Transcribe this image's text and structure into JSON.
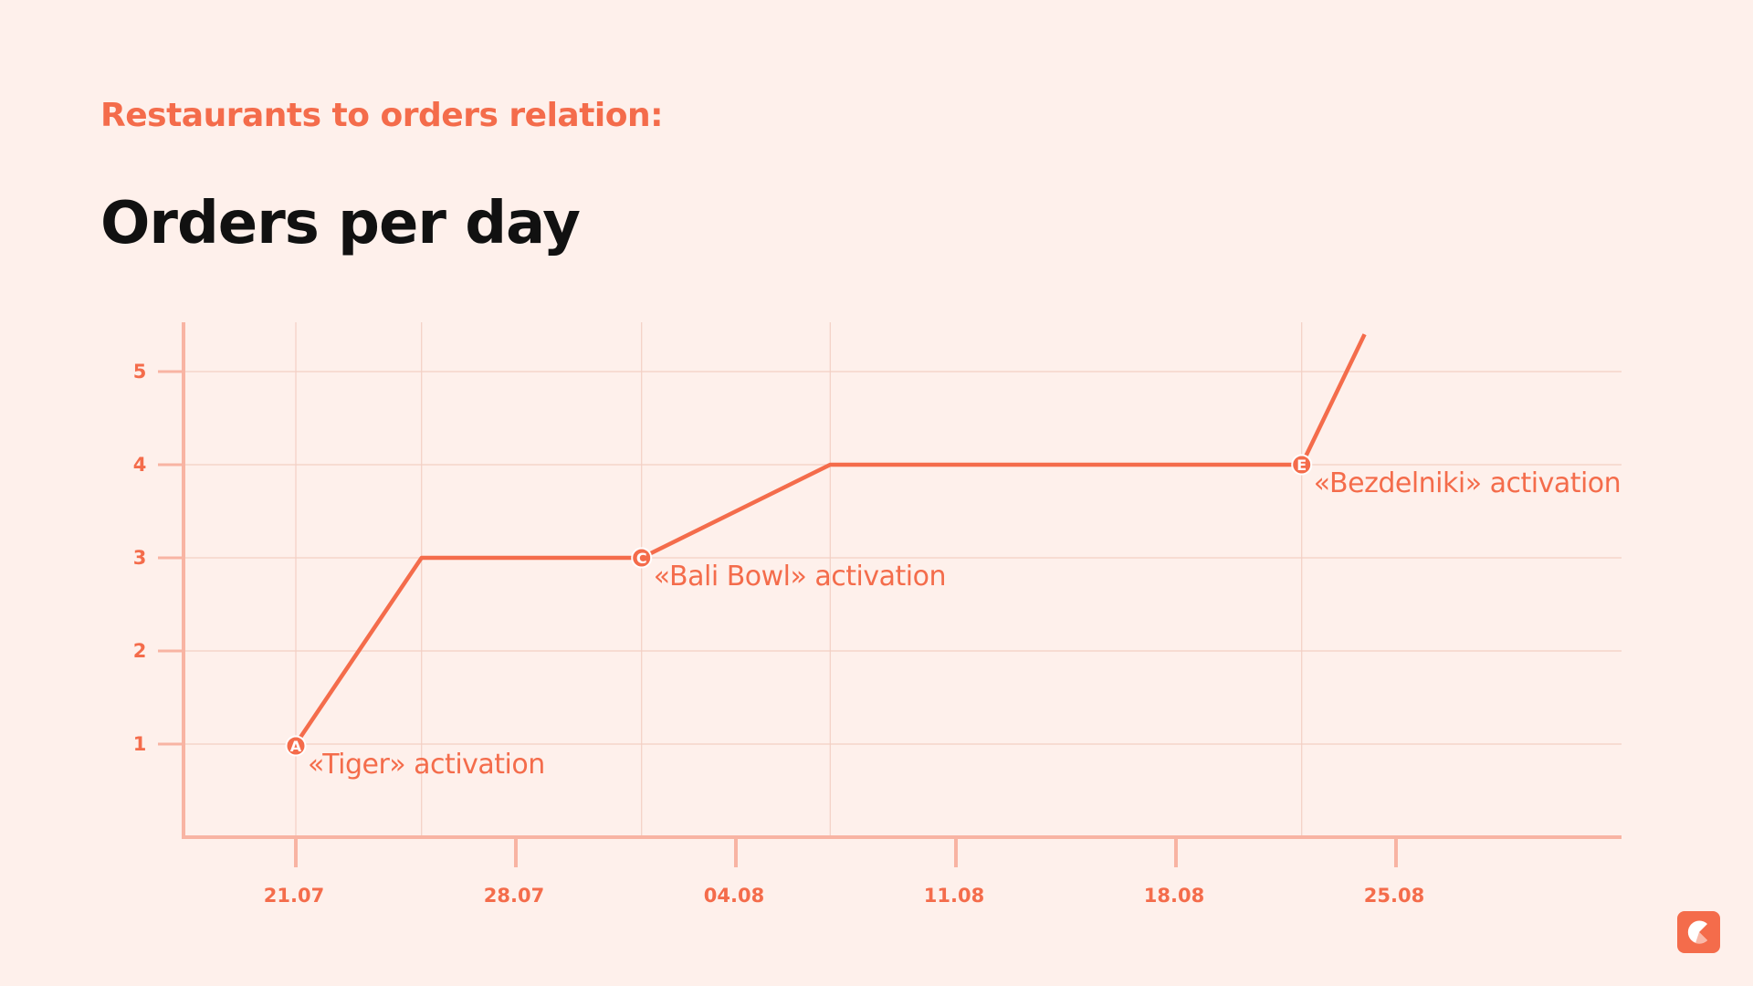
{
  "header": {
    "subtitle": "Restaurants to orders relation:",
    "title": "Orders per day"
  },
  "colors": {
    "accent": "#f46c4b",
    "background": "#fef0eb",
    "axis": "#f8b4a3",
    "grid": "#f3cfc4"
  },
  "chart_data": {
    "type": "line",
    "title": "Orders per day",
    "xlabel": "",
    "ylabel": "",
    "x_ticks": [
      "21.07",
      "28.07",
      "04.08",
      "11.08",
      "18.08",
      "25.08"
    ],
    "y_ticks": [
      1,
      2,
      3,
      4,
      5
    ],
    "ylim": [
      0,
      5.5
    ],
    "grid": true,
    "series": [
      {
        "points": [
          {
            "x": "21.07",
            "y": 1
          },
          {
            "x": "25.07",
            "y": 3
          },
          {
            "x": "01.08",
            "y": 3
          },
          {
            "x": "07.08",
            "y": 4
          },
          {
            "x": "22.08",
            "y": 4
          },
          {
            "x": "24.08",
            "y": 5.4
          }
        ]
      }
    ],
    "annotations": [
      {
        "marker": "A",
        "x": "21.07",
        "y": 1,
        "text": "«Tiger» activation"
      },
      {
        "marker": "C",
        "x": "01.08",
        "y": 3,
        "text": "«Bali Bowl» activation"
      },
      {
        "marker": "E",
        "x": "22.08",
        "y": 4,
        "text": "«Bezdelniki» activation"
      }
    ]
  },
  "logo": {
    "icon": "pie-chart-logo-icon"
  }
}
